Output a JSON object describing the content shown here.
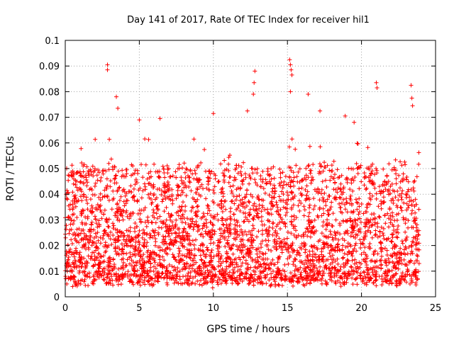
{
  "chart_data": {
    "type": "scatter",
    "title": "Day 141 of 2017, Rate Of TEC Index for receiver hil1",
    "xlabel": "GPS time / hours",
    "ylabel": "ROTI / TECUs",
    "xlim": [
      0,
      25
    ],
    "ylim": [
      0,
      0.1
    ],
    "xticks": [
      0,
      5,
      10,
      15,
      20,
      25
    ],
    "xtick_labels": [
      "0",
      "5",
      "10",
      "15",
      "20",
      "25"
    ],
    "yticks": [
      0,
      0.01,
      0.02,
      0.03,
      0.04,
      0.05,
      0.06,
      0.07,
      0.08,
      0.09,
      0.1
    ],
    "ytick_labels": [
      "0",
      "0.01",
      "0.02",
      "0.03",
      "0.04",
      "0.05",
      "0.06",
      "0.07",
      "0.08",
      "0.09",
      "0.1"
    ],
    "grid": true,
    "legend": "none",
    "marker": "plus",
    "color": "#ff0000",
    "x_data_range": [
      0,
      23.9
    ],
    "typical_band": [
      0.005,
      0.05
    ],
    "notable_points": [
      {
        "x": 2.85,
        "y": 0.0905
      },
      {
        "x": 2.85,
        "y": 0.0885
      },
      {
        "x": 3.45,
        "y": 0.078
      },
      {
        "x": 3.55,
        "y": 0.0735
      },
      {
        "x": 12.8,
        "y": 0.088
      },
      {
        "x": 12.75,
        "y": 0.0835
      },
      {
        "x": 12.7,
        "y": 0.079
      },
      {
        "x": 15.15,
        "y": 0.0925
      },
      {
        "x": 15.2,
        "y": 0.0905
      },
      {
        "x": 15.25,
        "y": 0.0885
      },
      {
        "x": 15.3,
        "y": 0.0865
      },
      {
        "x": 15.2,
        "y": 0.08
      },
      {
        "x": 16.4,
        "y": 0.079
      },
      {
        "x": 21.0,
        "y": 0.0835
      },
      {
        "x": 21.05,
        "y": 0.0815
      },
      {
        "x": 23.35,
        "y": 0.0825
      },
      {
        "x": 23.4,
        "y": 0.0775
      },
      {
        "x": 23.45,
        "y": 0.0745
      },
      {
        "x": 10.0,
        "y": 0.0715
      },
      {
        "x": 12.3,
        "y": 0.0725
      },
      {
        "x": 17.2,
        "y": 0.0725
      },
      {
        "x": 6.4,
        "y": 0.0695
      },
      {
        "x": 5.0,
        "y": 0.069
      },
      {
        "x": 18.9,
        "y": 0.0705
      },
      {
        "x": 19.5,
        "y": 0.068
      },
      {
        "x": 9.95,
        "y": 0.0035
      },
      {
        "x": 0.5,
        "y": 0.004
      }
    ]
  }
}
